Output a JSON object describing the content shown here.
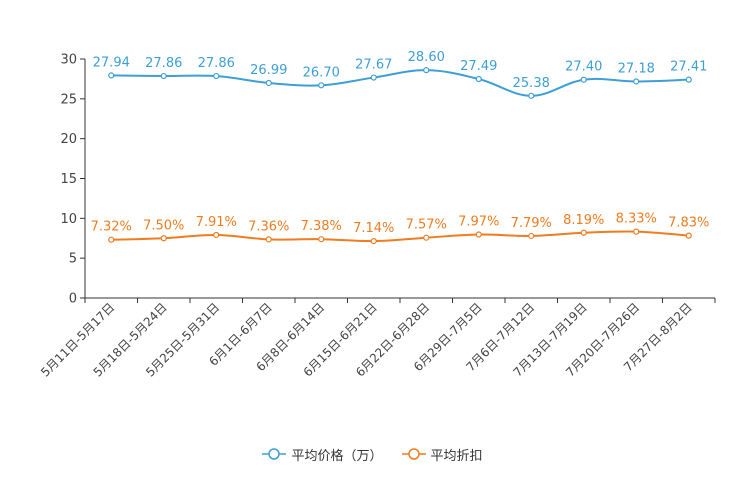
{
  "chart_data": {
    "type": "line",
    "title": "",
    "xlabel": "",
    "ylabel": "",
    "ylim": [
      0,
      30
    ],
    "yticks": [
      0,
      5,
      10,
      15,
      20,
      25,
      30
    ],
    "grid": false,
    "legend_position": "bottom",
    "categories": [
      "5月11日-5月17日",
      "5月18日-5月24日",
      "5月25日-5月31日",
      "6月1日-6月7日",
      "6月8日-6月14日",
      "6月15日-6月21日",
      "6月22日-6月28日",
      "6月29日-7月5日",
      "7月6日-7月12日",
      "7月13日-7月19日",
      "7月20日-7月26日",
      "7月27日-8月2日"
    ],
    "series": [
      {
        "name": "平均价格（万）",
        "color": "#3d9fd6",
        "values": [
          27.94,
          27.86,
          27.86,
          26.99,
          26.7,
          27.67,
          28.6,
          27.49,
          25.38,
          27.4,
          27.18,
          27.41
        ],
        "labels": [
          "27.94",
          "27.86",
          "27.86",
          "26.99",
          "26.70",
          "27.67",
          "28.60",
          "27.49",
          "25.38",
          "27.40",
          "27.18",
          "27.41"
        ]
      },
      {
        "name": "平均折扣",
        "color": "#f07c1f",
        "values": [
          7.32,
          7.5,
          7.91,
          7.36,
          7.38,
          7.14,
          7.57,
          7.97,
          7.79,
          8.19,
          8.33,
          7.83
        ],
        "labels": [
          "7.32%",
          "7.50%",
          "7.91%",
          "7.36%",
          "7.38%",
          "7.14%",
          "7.57%",
          "7.97%",
          "7.79%",
          "8.19%",
          "8.33%",
          "7.83%"
        ]
      }
    ]
  }
}
